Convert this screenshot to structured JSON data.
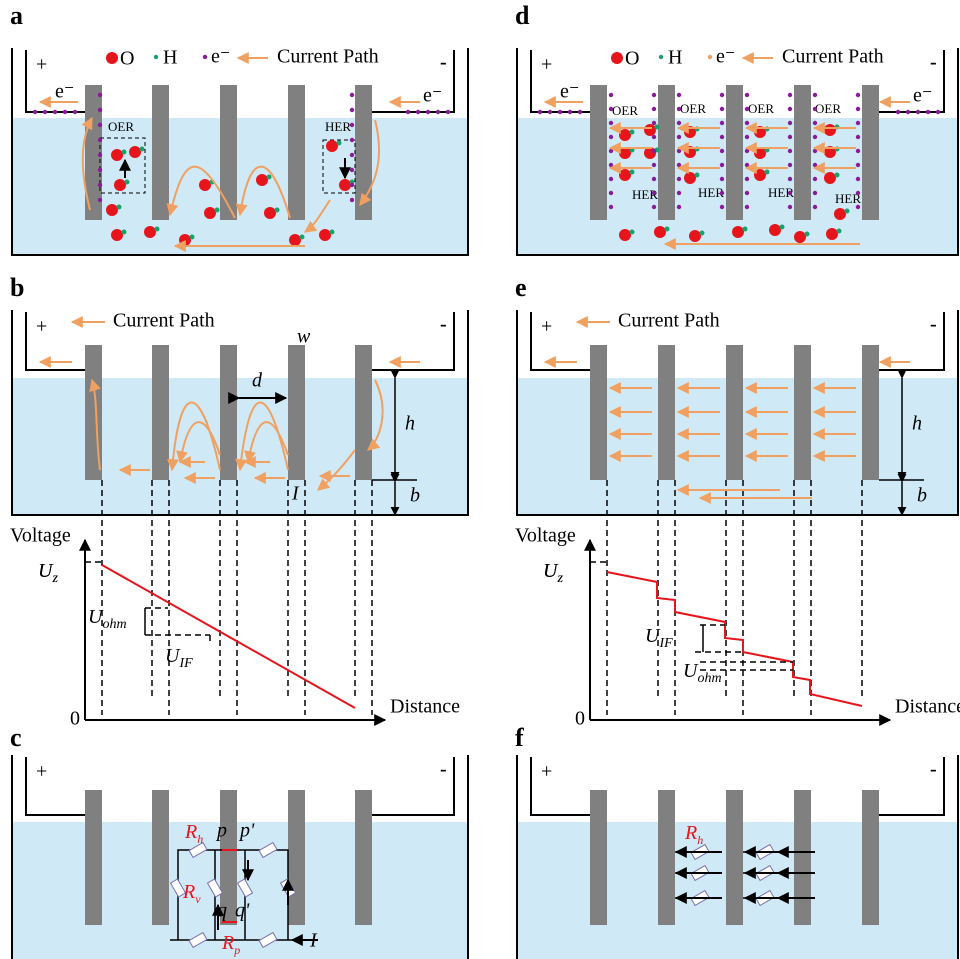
{
  "panels": {
    "a": {
      "label": "a",
      "legend": {
        "o": "O",
        "h": "H",
        "e": "e⁻",
        "current_path": "Current Path"
      },
      "plus": "+",
      "minus": "-",
      "electron": "e⁻",
      "oer": "OER",
      "her": "HER"
    },
    "b": {
      "label": "b",
      "current_path": "Current Path",
      "plus": "+",
      "minus": "-",
      "w": "w",
      "d": "d",
      "h": "h",
      "b": "b",
      "current": "I",
      "y_axis": "Voltage",
      "x_axis": "Distance",
      "origin": "0",
      "uz": {
        "main": "U",
        "sub": "z"
      },
      "uohm": {
        "main": "U",
        "sub": "ohm"
      },
      "uif": {
        "main": "U",
        "sub": "IF"
      }
    },
    "c": {
      "label": "c",
      "plus": "+",
      "minus": "-",
      "rh": {
        "main": "R",
        "sub": "h"
      },
      "rv": {
        "main": "R",
        "sub": "v"
      },
      "rp": {
        "main": "R",
        "sub": "p"
      },
      "p": "p",
      "p_prime": "p'",
      "q": "q",
      "q_prime": "q'",
      "current": "I"
    },
    "d": {
      "label": "d",
      "legend": {
        "o": "O",
        "h": "H",
        "e": "e⁻",
        "current_path": "Current Path"
      },
      "plus": "+",
      "minus": "-",
      "electron": "e⁻",
      "oer": "OER",
      "her": "HER"
    },
    "e": {
      "label": "e",
      "current_path": "Current Path",
      "plus": "+",
      "minus": "-",
      "h": "h",
      "b": "b",
      "y_axis": "Voltage",
      "x_axis": "Distance",
      "origin": "0",
      "uz": {
        "main": "U",
        "sub": "z"
      },
      "uif": {
        "main": "U",
        "sub": "IF"
      },
      "uohm": {
        "main": "U",
        "sub": "ohm"
      }
    },
    "f": {
      "label": "f",
      "plus": "+",
      "minus": "-",
      "rh": {
        "main": "R",
        "sub": "h"
      }
    }
  }
}
